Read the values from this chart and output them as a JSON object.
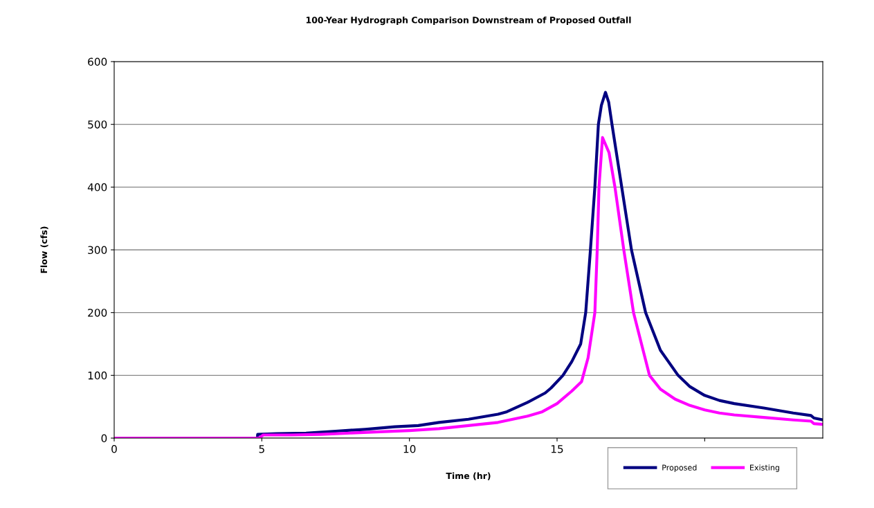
{
  "chart_data": {
    "type": "line",
    "title": "100-Year Hydrograph Comparison Downstream of Proposed Outfall",
    "xlabel": "Time (hr)",
    "ylabel": "Flow (cfs)",
    "xlim": [
      0,
      24
    ],
    "xticks": [
      0,
      5,
      10,
      15,
      {
        "value": 20,
        "label": null
      }
    ],
    "ylim": [
      0,
      600
    ],
    "yticks": [
      0,
      100,
      200,
      300,
      400,
      500,
      600
    ],
    "grid": "y",
    "legend": "bottom right",
    "marker": "none",
    "line_style": "solid",
    "series": [
      {
        "name": "Proposed",
        "color": "#000080",
        "x": [
          0,
          4.85,
          4.86,
          5.5,
          6.5,
          7.5,
          8.5,
          9.5,
          10.3,
          11,
          12,
          13,
          13.3,
          14,
          14.6,
          14.8,
          15.2,
          15.5,
          15.8,
          15.97,
          16.13,
          16.28,
          16.4,
          16.5,
          16.64,
          16.75,
          16.86,
          17.19,
          17.52,
          18.0,
          18.5,
          19.1,
          19.5,
          20,
          20.5,
          21,
          22,
          23,
          23.6,
          23.7,
          24
        ],
        "values": [
          0,
          0,
          6,
          7,
          8,
          11,
          14,
          18,
          20,
          25,
          30,
          38,
          42,
          57,
          72,
          80,
          100,
          122,
          150,
          200,
          300,
          400,
          500,
          530,
          551,
          535,
          500,
          400,
          300,
          200,
          140,
          100,
          82,
          68,
          60,
          55,
          48,
          40,
          36,
          32,
          29
        ]
      },
      {
        "name": "Existing",
        "color": "#ff00ff",
        "x": [
          0,
          4.9,
          5.05,
          6,
          7,
          8,
          9,
          10,
          11,
          12,
          13,
          14,
          14.5,
          15,
          15.5,
          15.83,
          16.05,
          16.28,
          16.36,
          16.42,
          16.54,
          16.76,
          16.96,
          17.26,
          17.59,
          18.13,
          18.5,
          19,
          19.5,
          20,
          20.5,
          21,
          22,
          23,
          23.6,
          23.7,
          24
        ],
        "values": [
          0,
          0,
          5,
          5,
          6,
          8,
          10,
          12,
          15,
          20,
          25,
          35,
          42,
          55,
          75,
          90,
          128,
          200,
          300,
          400,
          479,
          455,
          400,
          300,
          200,
          100,
          78,
          62,
          52,
          45,
          40,
          37,
          33,
          29,
          27,
          23,
          22
        ]
      }
    ]
  }
}
